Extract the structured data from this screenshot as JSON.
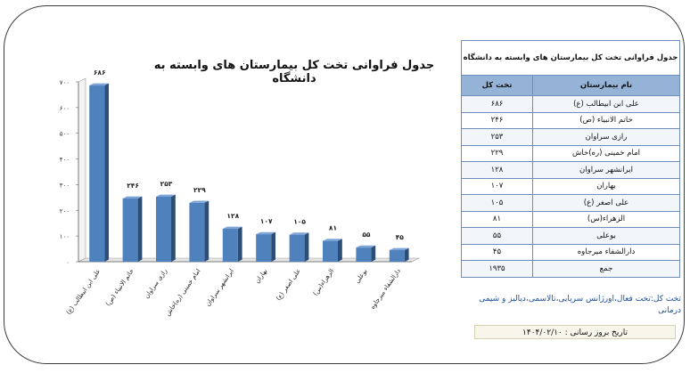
{
  "chart_data": {
    "type": "bar",
    "title": "جدول فراوانی تخت کل بیمارستان های وابسته به  دانشگاه",
    "categories": [
      "علی ابن ابیطالب (ع)",
      "خاتم الانبیاء (ص)",
      "رازی سراوان",
      "امام خمینی (ره)خاش",
      "ایرانشهر سراوان",
      "بهاران",
      "علی اصغر (ع)",
      "الزهراء(س)",
      "بوعلی",
      "دارالشفاء میرجاوه"
    ],
    "values": [
      686,
      246,
      253,
      229,
      128,
      107,
      105,
      81,
      55,
      45
    ],
    "value_labels": [
      "۶۸۶",
      "۲۴۶",
      "۲۵۳",
      "۲۲۹",
      "۱۲۸",
      "۱۰۷",
      "۱۰۵",
      "۸۱",
      "۵۵",
      "۴۵"
    ],
    "ylim": [
      0,
      700
    ],
    "yticks": [
      0,
      100,
      200,
      300,
      400,
      500,
      600,
      700
    ],
    "ytick_labels": [
      "۰",
      "۱۰۰",
      "۲۰۰",
      "۳۰۰",
      "۴۰۰",
      "۵۰۰",
      "۶۰۰",
      "۷۰۰"
    ],
    "xlabel": "",
    "ylabel": "",
    "grid": false,
    "bar_color": "#4f81bd"
  },
  "table": {
    "caption": "جدول فراوانی تخت کل بیمارستان های وابسته به  دانشگاه",
    "headers": {
      "name": "نام بیمارستان",
      "beds": "تخت کل"
    },
    "rows": [
      {
        "name": "علی ابن ابیطالب (ع)",
        "beds": "۶۸۶"
      },
      {
        "name": "خاتم الانبیاء (ص)",
        "beds": "۲۴۶"
      },
      {
        "name": "رازی سراوان",
        "beds": "۲۵۳"
      },
      {
        "name": "امام خمینی (ره)خاش",
        "beds": "۲۲۹"
      },
      {
        "name": "ایرانشهر سراوان",
        "beds": "۱۲۸"
      },
      {
        "name": "بهاران",
        "beds": "۱۰۷"
      },
      {
        "name": "علی اصغر (ع)",
        "beds": "۱۰۵"
      },
      {
        "name": "الزهراء(س)",
        "beds": "۸۱"
      },
      {
        "name": "بوعلی",
        "beds": "۵۵"
      },
      {
        "name": "دارالشفاء میرجاوه",
        "beds": "۴۵"
      },
      {
        "name": "جمع",
        "beds": "۱۹۳۵"
      }
    ]
  },
  "note": "تخت کل:تخت فعال،اورژانس سرپایی،تالاسمی،دیالیز و شیمی درمانی",
  "report_date": "تاریخ بروز رسانی : ۱۴۰۴/۰۲/۱۰"
}
